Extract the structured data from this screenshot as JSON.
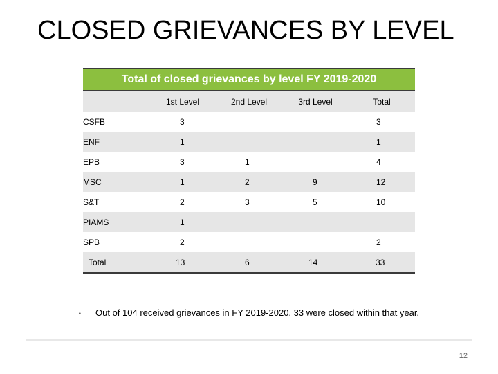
{
  "slide": {
    "title": "CLOSED GRIEVANCES BY LEVEL",
    "page_number": "12"
  },
  "table": {
    "title": "Total of closed grievances by level FY 2019-2020",
    "columns": [
      "",
      "1st Level",
      "2nd Level",
      "3rd Level",
      "Total"
    ],
    "rows": [
      {
        "label": "CSFB",
        "l1": "3",
        "l2": "",
        "l3": "",
        "total": "3"
      },
      {
        "label": "ENF",
        "l1": "1",
        "l2": "",
        "l3": "",
        "total": "1"
      },
      {
        "label": "EPB",
        "l1": "3",
        "l2": "1",
        "l3": "",
        "total": "4"
      },
      {
        "label": "MSC",
        "l1": "1",
        "l2": "2",
        "l3": "9",
        "total": "12"
      },
      {
        "label": "S&T",
        "l1": "2",
        "l2": "3",
        "l3": "5",
        "total": "10"
      },
      {
        "label": "PIAMS",
        "l1": "1",
        "l2": "",
        "l3": "",
        "total": ""
      },
      {
        "label": "SPB",
        "l1": "2",
        "l2": "",
        "l3": "",
        "total": "2"
      }
    ],
    "total_row": {
      "label": "Total",
      "l1": "13",
      "l2": "6",
      "l3": "14",
      "total": "33"
    }
  },
  "bullet": {
    "text": "Out of 104 received grievances in FY 2019-2020, 33 were closed within that year."
  },
  "colors": {
    "header_green": "#8cbf3f",
    "row_shading": "#e6e6e6"
  }
}
